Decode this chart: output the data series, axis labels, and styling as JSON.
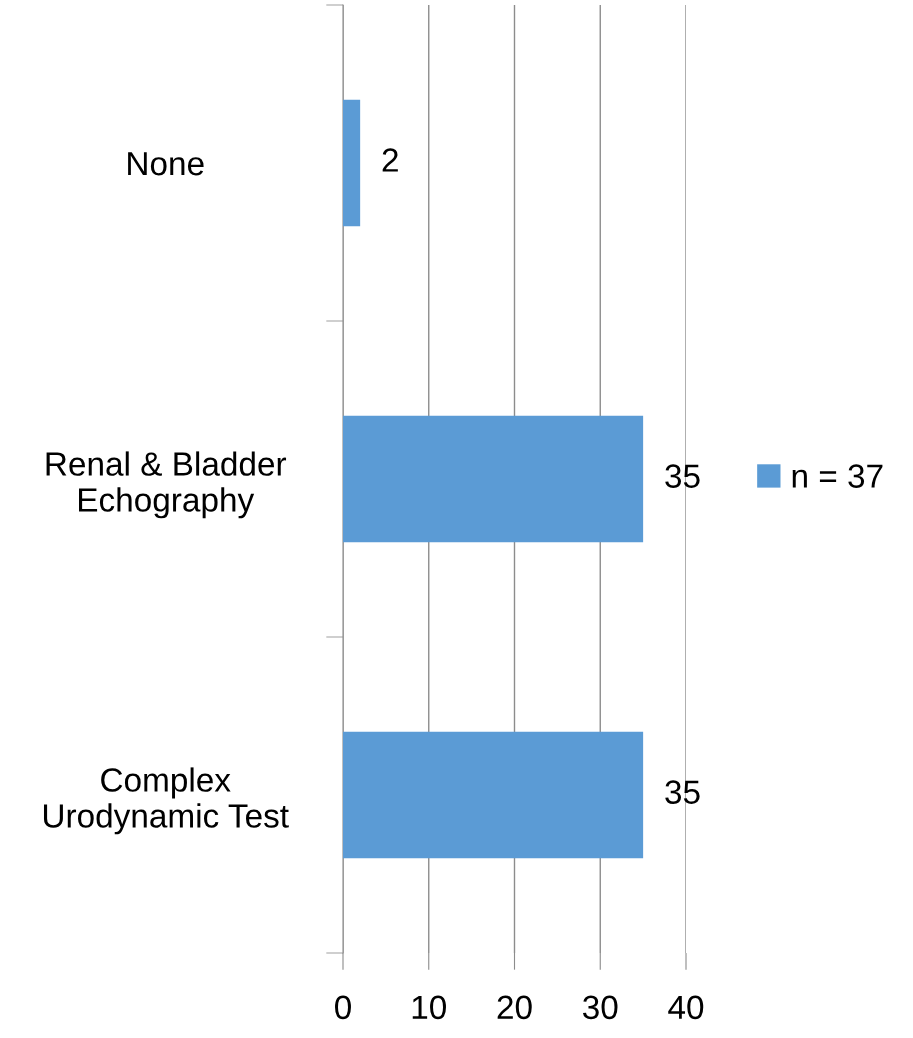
{
  "chart_data": {
    "type": "bar",
    "orientation": "horizontal",
    "categories": [
      "None",
      "Renal & Bladder\nEchography",
      "Complex\nUrodynamic Test"
    ],
    "series": [
      {
        "name": "n = 37",
        "color": "#5b9bd5",
        "values": [
          2,
          35,
          35
        ]
      }
    ],
    "xlim": [
      0,
      40
    ],
    "xticks": [
      0,
      10,
      20,
      30,
      40
    ],
    "grid": "x",
    "legend": "right",
    "data_labels": true
  }
}
